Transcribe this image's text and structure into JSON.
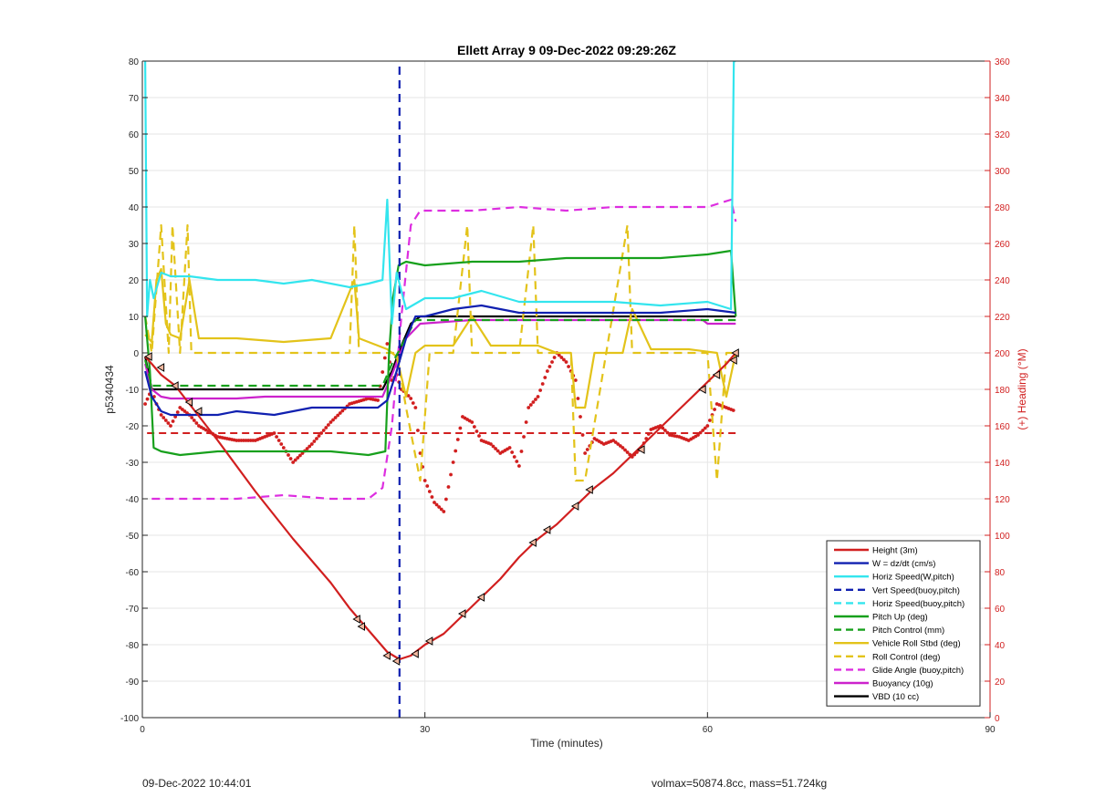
{
  "chart_data": {
    "type": "line",
    "title": "Ellett Array 9 09-Dec-2022 09:29:26Z",
    "xlabel": "Time (minutes)",
    "ylabel": "p5340434",
    "y2label": "(+) Heading (°M)",
    "xlim": [
      0,
      90
    ],
    "ylim": [
      -100,
      80
    ],
    "y2lim": [
      0,
      360
    ],
    "xticks": [
      0,
      30,
      60,
      90
    ],
    "yticks": [
      80,
      70,
      60,
      50,
      40,
      30,
      20,
      10,
      0,
      -10,
      -20,
      -30,
      -40,
      -50,
      -60,
      -70,
      -80,
      -90,
      -100
    ],
    "y2ticks": [
      360,
      340,
      320,
      300,
      280,
      260,
      240,
      220,
      200,
      180,
      160,
      140,
      120,
      100,
      80,
      60,
      40,
      20,
      0
    ],
    "grid": true,
    "legend_position": "bottom-right",
    "series": [
      {
        "name": "Height (3m)",
        "color": "#d11f1f",
        "style": "solid",
        "x": [
          0.3,
          1,
          2,
          3.5,
          5,
          8,
          12,
          16,
          20,
          22,
          24,
          26,
          27.3,
          28.5,
          30,
          32,
          34,
          36,
          38,
          40,
          42,
          44,
          46,
          48,
          50,
          52,
          54,
          56,
          58,
          60,
          62,
          63
        ],
        "y": [
          -1,
          -3,
          -6,
          -9,
          -14,
          -24,
          -38,
          -51,
          -63,
          -70,
          -76,
          -82,
          -84,
          -83,
          -80,
          -77,
          -72,
          -67,
          -62,
          -56,
          -51,
          -47,
          -42,
          -37,
          -33,
          -28,
          -23,
          -18,
          -13,
          -8,
          -3,
          0
        ]
      },
      {
        "name": "W = dz/dt (cm/s)",
        "color": "#1020b0",
        "style": "solid",
        "x": [
          0.3,
          1,
          2,
          3,
          5,
          8,
          10,
          14,
          18,
          22,
          25,
          26,
          27,
          28,
          29,
          30,
          33,
          36,
          40,
          45,
          50,
          55,
          60,
          63
        ],
        "y": [
          -5,
          -12,
          -16,
          -17,
          -17,
          -17,
          -16,
          -17,
          -15,
          -15,
          -15,
          -13,
          -5,
          4,
          10,
          10,
          12,
          13,
          11,
          11,
          11,
          11,
          12,
          11
        ]
      },
      {
        "name": "Horiz Speed(W,pitch)",
        "color": "#33e5ee",
        "style": "solid",
        "x": [
          0.3,
          0.5,
          0.8,
          1.2,
          2,
          3,
          5,
          8,
          12,
          15,
          18,
          22,
          24,
          25.5,
          26,
          26.5,
          27,
          28,
          30,
          33,
          36,
          40,
          45,
          50,
          55,
          60,
          62.5,
          62.8,
          63
        ],
        "y": [
          80,
          10,
          20,
          15,
          22,
          21,
          21,
          20,
          20,
          19,
          20,
          18,
          19,
          20,
          42,
          8,
          22,
          12,
          15,
          15,
          17,
          14,
          14,
          14,
          13,
          14,
          12,
          80,
          80
        ]
      },
      {
        "name": "Vert Speed(buoy,pitch)",
        "color": "#1020b0",
        "style": "dashed",
        "x": [
          27.3,
          27.3,
          27.3,
          27.3
        ],
        "y": [
          -100,
          -40,
          40,
          80
        ]
      },
      {
        "name": "Horiz Speed(buoy,pitch)",
        "color": "#33e5ee",
        "style": "dashed",
        "x": [],
        "y": []
      },
      {
        "name": "Pitch Up (deg)",
        "color": "#17a01c",
        "style": "solid",
        "x": [
          0.3,
          0.8,
          1.2,
          2,
          4,
          8,
          12,
          16,
          20,
          24,
          25.8,
          26.2,
          26.6,
          27.2,
          28,
          30,
          35,
          40,
          45,
          50,
          55,
          60,
          62.5,
          63
        ],
        "y": [
          10,
          -5,
          -26,
          -27,
          -28,
          -27,
          -27,
          -27,
          -27,
          -28,
          -27,
          0,
          15,
          24,
          25,
          24,
          25,
          25,
          26,
          26,
          26,
          27,
          28,
          10
        ]
      },
      {
        "name": "Pitch Control (mm)",
        "color": "#17a01c",
        "style": "dashed",
        "x": [
          0.3,
          1,
          2,
          25.5,
          26.5,
          29,
          40,
          63
        ],
        "y": [
          -2,
          -9,
          -9,
          -9,
          -3,
          9,
          9,
          9
        ]
      },
      {
        "name": "Vehicle Roll Stbd (deg)",
        "color": "#e3c31a",
        "style": "solid",
        "x": [
          0.3,
          1,
          1.5,
          2,
          2.5,
          3,
          4,
          5,
          6,
          10,
          15,
          20,
          22.5,
          23,
          24,
          25,
          26,
          27,
          28,
          29,
          30,
          33,
          35,
          37,
          40,
          42,
          44,
          45.5,
          46,
          47,
          48,
          51,
          52,
          54,
          58,
          61,
          62,
          63
        ],
        "y": [
          5,
          3,
          20,
          23,
          8,
          5,
          4,
          20,
          4,
          4,
          3,
          4,
          20,
          4,
          3,
          2,
          1,
          -1,
          -12,
          0,
          2,
          2,
          10,
          2,
          2,
          2,
          0,
          0,
          -15,
          -15,
          0,
          0,
          12,
          1,
          1,
          0,
          -12,
          0
        ]
      },
      {
        "name": "Roll Control (deg)",
        "color": "#e3c31a",
        "style": "dashed",
        "x": [
          0.3,
          1,
          2,
          2.8,
          3.2,
          4,
          4.8,
          5.2,
          6,
          22,
          22.5,
          23,
          26,
          27,
          28,
          29.5,
          30.5,
          33,
          34.5,
          35,
          40,
          41.5,
          42,
          45.5,
          46,
          47,
          51.5,
          52,
          60,
          61,
          62,
          63
        ],
        "y": [
          10,
          0,
          35,
          0,
          35,
          0,
          35,
          0,
          0,
          0,
          35,
          0,
          0,
          0,
          -15,
          -35,
          0,
          0,
          35,
          0,
          0,
          35,
          0,
          0,
          -35,
          -35,
          35,
          0,
          0,
          -35,
          0,
          0
        ]
      },
      {
        "name": "Glide Angle (buoy,pitch)",
        "color": "#dd2ee0",
        "style": "dashed",
        "x": [
          1,
          5,
          10,
          15,
          20,
          24,
          25.5,
          26.5,
          27.5,
          28.5,
          29.5,
          35,
          40,
          45,
          50,
          55,
          60,
          62.5,
          63
        ],
        "y": [
          -40,
          -40,
          -40,
          -39,
          -40,
          -40,
          -37,
          -20,
          10,
          35,
          39,
          39,
          40,
          39,
          40,
          40,
          40,
          42,
          36
        ]
      },
      {
        "name": "Buoyancy (10g)",
        "color": "#cc22cc",
        "style": "solid",
        "x": [
          0.3,
          1,
          2,
          3,
          10,
          13,
          20,
          24,
          25.5,
          26.5,
          28,
          29.5,
          35,
          40,
          45,
          50,
          55,
          59.5,
          60,
          63
        ],
        "y": [
          -3,
          -10,
          -12,
          -12.5,
          -12.5,
          -12,
          -12,
          -12,
          -12,
          -6,
          4,
          8,
          9,
          9,
          9,
          9,
          9,
          9,
          8,
          8
        ]
      },
      {
        "name": "VBD (10 cc)",
        "color": "#000000",
        "style": "solid",
        "x": [
          0.3,
          1,
          2,
          25.5,
          26.5,
          27.5,
          28.5,
          29.5,
          40,
          50,
          63
        ],
        "y": [
          -1,
          -10,
          -10,
          -10,
          -5,
          2,
          8,
          10,
          10,
          10,
          10
        ]
      }
    ],
    "markers": {
      "name": "Height (3m) markers",
      "x": [
        0.7,
        2,
        3.5,
        5,
        6,
        22.8,
        23.3,
        26,
        27,
        29,
        30.5,
        34,
        36,
        41.5,
        43,
        46,
        47.5,
        53,
        59.5,
        61,
        62.8,
        63
      ],
      "y": [
        -1,
        -4,
        -9,
        -13.5,
        -16,
        -73,
        -75,
        -83,
        -84.5,
        -82.5,
        -79,
        -71.5,
        -67,
        -52,
        -48.5,
        -42,
        -37.5,
        -26.5,
        -10,
        -6,
        -2,
        0
      ]
    },
    "heading": {
      "name": "Heading",
      "color": "#d11f1f",
      "target": 156,
      "target_x": [
        0.5,
        63
      ],
      "x": [
        0.3,
        1,
        1.5,
        2,
        3,
        4,
        5,
        6,
        8,
        10,
        12,
        14,
        16,
        18,
        20,
        22,
        24,
        25,
        26,
        26.5,
        27,
        27.5,
        28,
        28.5,
        29,
        29.5,
        30,
        31,
        32,
        33,
        34,
        35,
        36,
        37,
        38,
        39,
        40,
        41,
        42,
        43,
        44,
        45,
        46,
        47,
        48,
        49,
        50,
        51,
        52,
        53,
        54,
        55,
        56,
        57,
        58,
        59,
        60,
        61,
        62,
        63
      ],
      "y": [
        172,
        180,
        172,
        166,
        160,
        170,
        166,
        160,
        154,
        152,
        152,
        156,
        140,
        150,
        162,
        172,
        175,
        174,
        205,
        185,
        188,
        180,
        178,
        175,
        170,
        145,
        130,
        118,
        113,
        140,
        165,
        162,
        152,
        150,
        145,
        148,
        138,
        170,
        176,
        190,
        200,
        195,
        185,
        145,
        153,
        150,
        152,
        148,
        143,
        148,
        158,
        160,
        155,
        154,
        152,
        155,
        160,
        172,
        170,
        168
      ]
    }
  },
  "footer": {
    "left": "09-Dec-2022 10:44:01",
    "right": "volmax=50874.8cc, mass=51.724kg"
  }
}
